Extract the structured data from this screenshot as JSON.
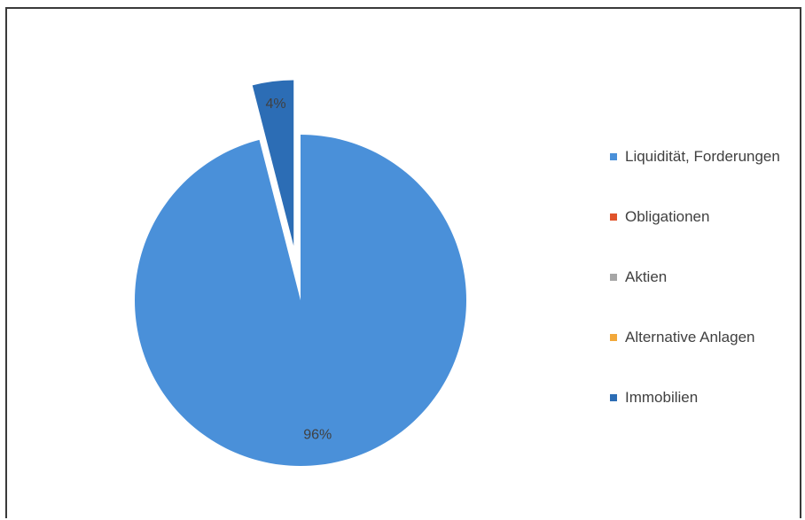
{
  "chart_data": {
    "type": "pie",
    "categories": [
      "Liquidität, Forderungen",
      "Obligationen",
      "Aktien",
      "Alternative Anlagen",
      "Immobilien"
    ],
    "values": [
      96,
      0,
      0,
      0,
      4
    ],
    "colors": [
      "#4A90D9",
      "#E0532B",
      "#A6A6A6",
      "#F2A83A",
      "#2C6DB5"
    ],
    "data_labels": [
      "96%",
      "",
      "",
      "",
      "4%"
    ],
    "exploded": [
      false,
      false,
      false,
      false,
      true
    ],
    "legend_position": "right",
    "title": ""
  }
}
